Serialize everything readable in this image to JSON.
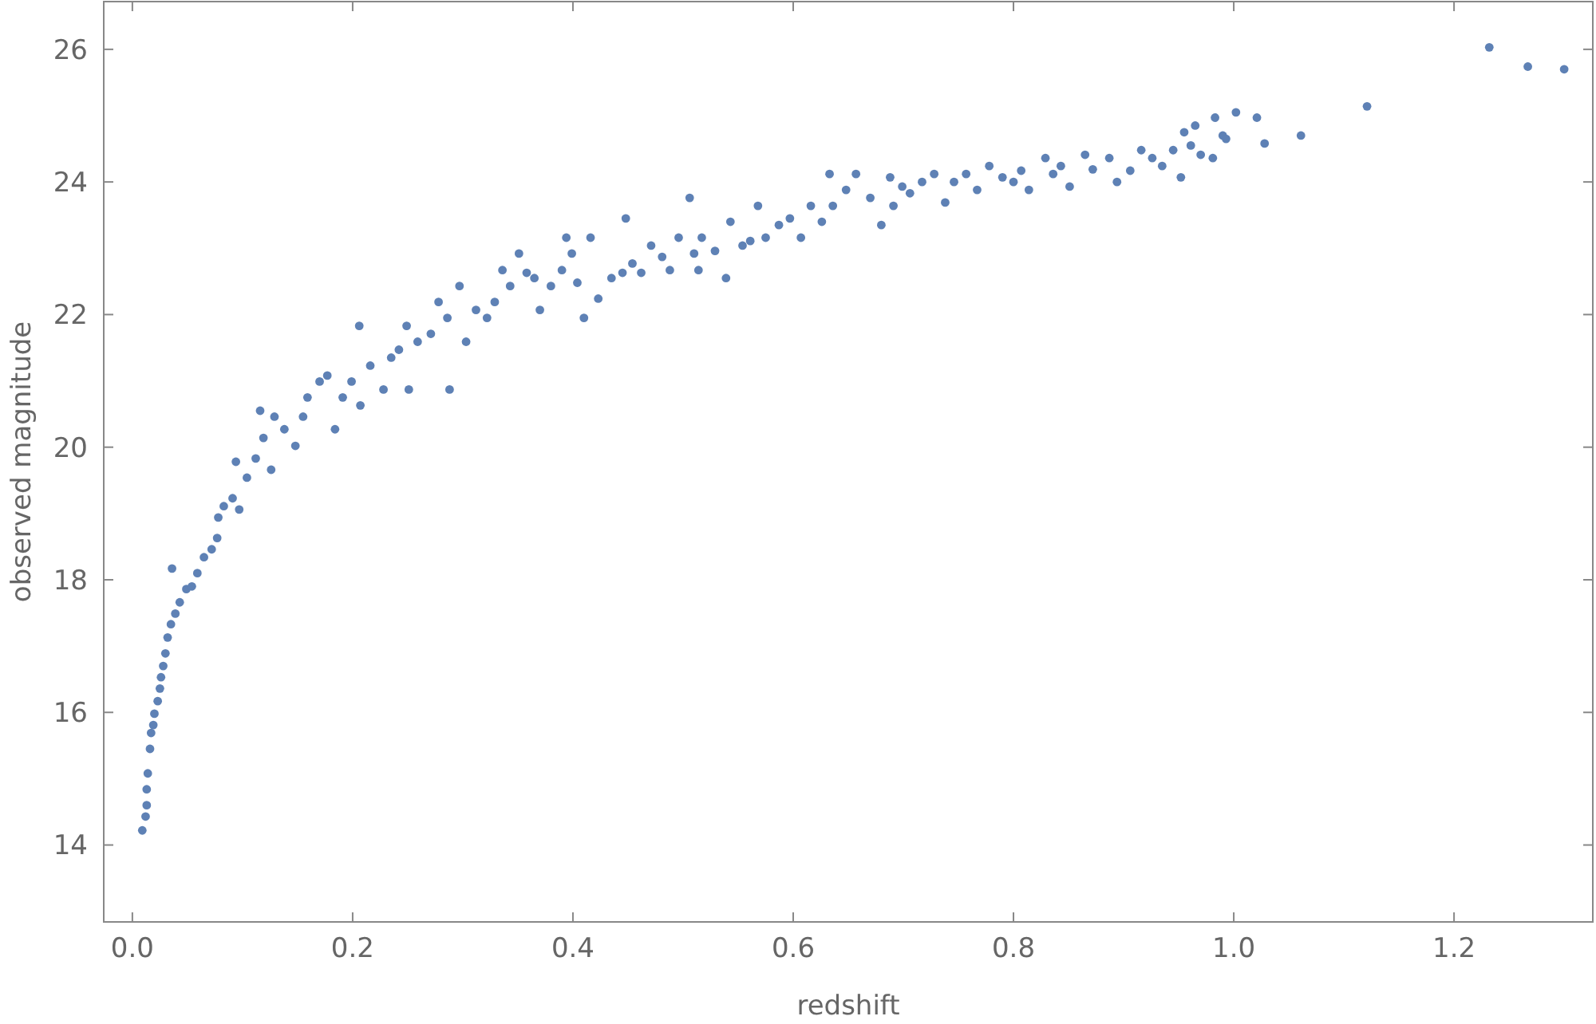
{
  "chart_data": {
    "type": "scatter",
    "xlabel": "redshift",
    "ylabel": "observed magnitude",
    "marker": "circle",
    "grid": false,
    "xlim": [
      -0.026,
      1.326
    ],
    "ylim": [
      12.84,
      26.72
    ],
    "xticks": [
      {
        "value": 0,
        "label": "0.0"
      },
      {
        "value": 0.2,
        "label": "0.2"
      },
      {
        "value": 0.4,
        "label": "0.4"
      },
      {
        "value": 0.6,
        "label": "0.6"
      },
      {
        "value": 0.8,
        "label": "0.8"
      },
      {
        "value": 1,
        "label": "1.0"
      },
      {
        "value": 1.2,
        "label": "1.2"
      }
    ],
    "yticks": [
      14,
      16,
      18,
      20,
      22,
      24,
      26
    ],
    "series": [
      {
        "color": "#5e81b5",
        "x": [
          0.009,
          0.012,
          0.013,
          0.013,
          0.014,
          0.016,
          0.017,
          0.019,
          0.02,
          0.023,
          0.025,
          0.026,
          0.028,
          0.03,
          0.032,
          0.035,
          0.036,
          0.039,
          0.043,
          0.049,
          0.054,
          0.059,
          0.065,
          0.072,
          0.077,
          0.078,
          0.083,
          0.091,
          0.094,
          0.097,
          0.104,
          0.112,
          0.116,
          0.119,
          0.126,
          0.129,
          0.138,
          0.148,
          0.155,
          0.159,
          0.17,
          0.177,
          0.184,
          0.191,
          0.199,
          0.206,
          0.207,
          0.216,
          0.228,
          0.235,
          0.242,
          0.249,
          0.251,
          0.259,
          0.271,
          0.278,
          0.286,
          0.288,
          0.297,
          0.303,
          0.312,
          0.322,
          0.329,
          0.336,
          0.343,
          0.351,
          0.358,
          0.365,
          0.37,
          0.38,
          0.39,
          0.394,
          0.399,
          0.404,
          0.41,
          0.416,
          0.423,
          0.435,
          0.445,
          0.448,
          0.454,
          0.462,
          0.471,
          0.481,
          0.488,
          0.496,
          0.506,
          0.51,
          0.514,
          0.517,
          0.529,
          0.539,
          0.543,
          0.554,
          0.561,
          0.568,
          0.575,
          0.587,
          0.597,
          0.607,
          0.616,
          0.626,
          0.633,
          0.636,
          0.648,
          0.657,
          0.67,
          0.68,
          0.688,
          0.691,
          0.699,
          0.706,
          0.717,
          0.728,
          0.738,
          0.746,
          0.757,
          0.767,
          0.778,
          0.79,
          0.8,
          0.807,
          0.814,
          0.829,
          0.836,
          0.843,
          0.851,
          0.865,
          0.872,
          0.887,
          0.894,
          0.906,
          0.916,
          0.926,
          0.935,
          0.945,
          0.952,
          0.955,
          0.961,
          0.965,
          0.97,
          0.981,
          0.983,
          0.99,
          0.993,
          1.002,
          1.021,
          1.028,
          1.061,
          1.121,
          1.232,
          1.267,
          1.3
        ],
        "values": [
          14.22,
          14.43,
          14.6,
          14.84,
          15.08,
          15.45,
          15.69,
          15.81,
          15.98,
          16.17,
          16.36,
          16.53,
          16.7,
          16.89,
          17.13,
          17.33,
          18.17,
          17.49,
          17.66,
          17.86,
          17.9,
          18.1,
          18.34,
          18.46,
          18.63,
          18.94,
          19.11,
          19.23,
          19.78,
          19.06,
          19.54,
          19.83,
          20.55,
          20.14,
          19.66,
          20.46,
          20.27,
          20.02,
          20.46,
          20.75,
          20.99,
          21.08,
          20.27,
          20.75,
          20.99,
          21.83,
          20.63,
          21.23,
          20.87,
          21.35,
          21.47,
          21.83,
          20.87,
          21.59,
          21.71,
          22.19,
          21.95,
          20.87,
          22.43,
          21.59,
          22.07,
          21.95,
          22.19,
          22.67,
          22.43,
          22.92,
          22.63,
          22.55,
          22.07,
          22.43,
          22.67,
          23.16,
          22.92,
          22.48,
          21.95,
          23.16,
          22.24,
          22.55,
          22.63,
          23.45,
          22.77,
          22.63,
          23.04,
          22.87,
          22.67,
          23.16,
          23.76,
          22.92,
          22.67,
          23.16,
          22.96,
          22.55,
          23.4,
          23.04,
          23.11,
          23.64,
          23.16,
          23.35,
          23.45,
          23.16,
          23.64,
          23.4,
          24.12,
          23.64,
          23.88,
          24.12,
          23.76,
          23.35,
          24.07,
          23.64,
          23.93,
          23.83,
          24.0,
          24.12,
          23.69,
          24.0,
          24.12,
          23.88,
          24.24,
          24.07,
          24.0,
          24.17,
          23.88,
          24.36,
          24.12,
          24.24,
          23.93,
          24.41,
          24.19,
          24.36,
          24.0,
          24.17,
          24.48,
          24.36,
          24.24,
          24.48,
          24.07,
          24.75,
          24.55,
          24.85,
          24.41,
          24.36,
          24.97,
          24.7,
          24.65,
          25.05,
          24.97,
          24.58,
          24.7,
          25.14,
          26.03,
          25.74,
          25.7
        ]
      }
    ]
  }
}
